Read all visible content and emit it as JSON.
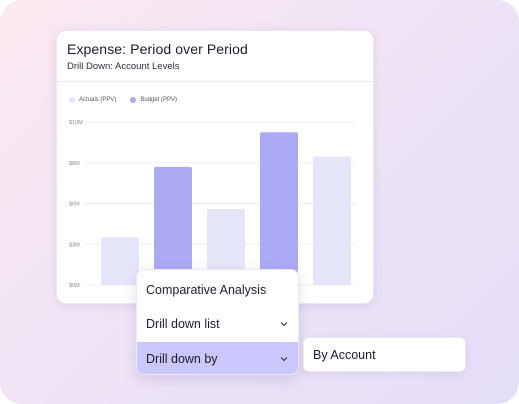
{
  "card": {
    "title": "Expense: Period over Period",
    "subtitle": "Drill Down: Account Levels"
  },
  "legend": [
    {
      "label": "Actuals (PPV)",
      "color": "#e6e6fa"
    },
    {
      "label": "Budget (PPV)",
      "color": "#acaaf5"
    }
  ],
  "chart_data": {
    "type": "bar",
    "y_ticks": [
      "$10M",
      "$8M",
      "$6M",
      "$3M",
      "$0M"
    ],
    "y_tick_values": [
      10,
      8,
      6,
      3,
      0
    ],
    "ylim": [
      0,
      10
    ],
    "series": [
      {
        "name": "Actuals (PPV)",
        "color": "#e6e6fa"
      },
      {
        "name": "Budget (PPV)",
        "color": "#acaaf5"
      }
    ],
    "bars": [
      {
        "series": 0,
        "value": 3.5
      },
      {
        "series": 1,
        "value": 7.8
      },
      {
        "series": 0,
        "value": 5.6
      },
      {
        "series": 1,
        "value": 9.5
      },
      {
        "series": 0,
        "value": 8.3
      }
    ]
  },
  "dropdown": {
    "heading": "Comparative Analysis",
    "list_label": "Drill down list",
    "by_label": "Drill down by",
    "chevron": "chevron-down-icon"
  },
  "side_panel": {
    "label": "By Account"
  }
}
